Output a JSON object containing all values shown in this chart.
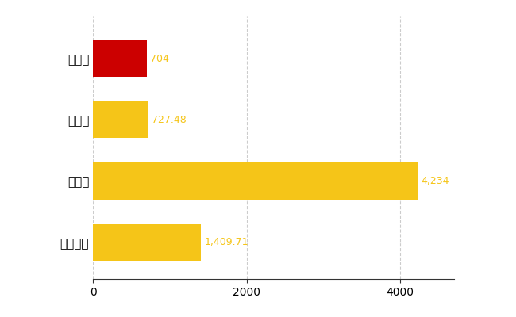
{
  "categories": [
    "昭和町",
    "県平均",
    "県最大",
    "全国平均"
  ],
  "values": [
    704,
    727.48,
    4234,
    1409.71
  ],
  "bar_colors": [
    "#cc0000",
    "#f5c518",
    "#f5c518",
    "#f5c518"
  ],
  "value_labels": [
    "704",
    "727.48",
    "4,234",
    "1,409.71"
  ],
  "xlim": [
    0,
    4700
  ],
  "xticks": [
    0,
    2000,
    4000
  ],
  "xtick_labels": [
    "0",
    "2000",
    "4000"
  ],
  "background_color": "#ffffff",
  "grid_color": "#cccccc",
  "label_color": "#f5c518",
  "bar_height": 0.6,
  "figsize": [
    6.5,
    4.0
  ],
  "dpi": 100
}
